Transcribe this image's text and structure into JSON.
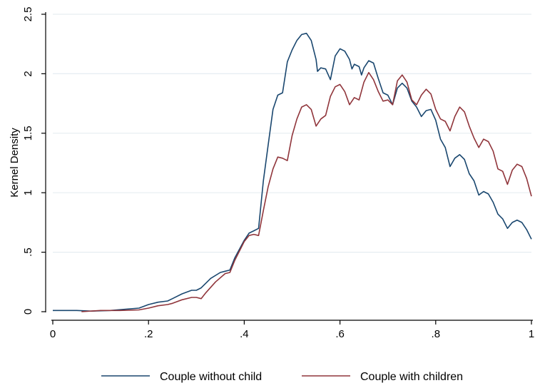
{
  "chart_data": {
    "type": "line",
    "title": "",
    "xlabel": "",
    "ylabel": "Kernel Density",
    "xlim": [
      0,
      1
    ],
    "ylim": [
      0,
      2.5
    ],
    "xticks": [
      0,
      0.2,
      0.4,
      0.6,
      0.8,
      1
    ],
    "xtick_labels": [
      "0",
      ".2",
      ".4",
      ".6",
      ".8",
      "1"
    ],
    "yticks": [
      0,
      0.5,
      1,
      1.5,
      2,
      2.5
    ],
    "ytick_labels": [
      "0",
      ".5",
      "1",
      "1.5",
      "2",
      "2.5"
    ],
    "grid": "horizontal",
    "legend_position": "bottom",
    "series": [
      {
        "name": "Couple without child",
        "color": "#1a476f",
        "points": [
          [
            0.0,
            0.01
          ],
          [
            0.05,
            0.01
          ],
          [
            0.08,
            0.005
          ],
          [
            0.12,
            0.01
          ],
          [
            0.15,
            0.02
          ],
          [
            0.18,
            0.03
          ],
          [
            0.2,
            0.06
          ],
          [
            0.22,
            0.08
          ],
          [
            0.24,
            0.09
          ],
          [
            0.25,
            0.11
          ],
          [
            0.27,
            0.15
          ],
          [
            0.29,
            0.18
          ],
          [
            0.3,
            0.18
          ],
          [
            0.31,
            0.2
          ],
          [
            0.33,
            0.28
          ],
          [
            0.35,
            0.33
          ],
          [
            0.36,
            0.34
          ],
          [
            0.37,
            0.35
          ],
          [
            0.38,
            0.45
          ],
          [
            0.4,
            0.6
          ],
          [
            0.41,
            0.66
          ],
          [
            0.42,
            0.68
          ],
          [
            0.43,
            0.7
          ],
          [
            0.44,
            1.1
          ],
          [
            0.45,
            1.4
          ],
          [
            0.46,
            1.7
          ],
          [
            0.47,
            1.82
          ],
          [
            0.48,
            1.84
          ],
          [
            0.49,
            2.1
          ],
          [
            0.5,
            2.2
          ],
          [
            0.51,
            2.28
          ],
          [
            0.52,
            2.33
          ],
          [
            0.53,
            2.34
          ],
          [
            0.54,
            2.28
          ],
          [
            0.55,
            2.12
          ],
          [
            0.553,
            2.02
          ],
          [
            0.56,
            2.05
          ],
          [
            0.57,
            2.04
          ],
          [
            0.58,
            1.95
          ],
          [
            0.59,
            2.15
          ],
          [
            0.6,
            2.21
          ],
          [
            0.61,
            2.19
          ],
          [
            0.62,
            2.12
          ],
          [
            0.625,
            2.04
          ],
          [
            0.63,
            2.08
          ],
          [
            0.64,
            2.06
          ],
          [
            0.645,
            1.99
          ],
          [
            0.65,
            2.05
          ],
          [
            0.66,
            2.11
          ],
          [
            0.67,
            2.09
          ],
          [
            0.68,
            1.96
          ],
          [
            0.69,
            1.84
          ],
          [
            0.7,
            1.82
          ],
          [
            0.71,
            1.74
          ],
          [
            0.72,
            1.88
          ],
          [
            0.73,
            1.92
          ],
          [
            0.74,
            1.88
          ],
          [
            0.75,
            1.77
          ],
          [
            0.76,
            1.72
          ],
          [
            0.77,
            1.64
          ],
          [
            0.78,
            1.69
          ],
          [
            0.79,
            1.7
          ],
          [
            0.8,
            1.61
          ],
          [
            0.81,
            1.45
          ],
          [
            0.82,
            1.38
          ],
          [
            0.83,
            1.22
          ],
          [
            0.84,
            1.29
          ],
          [
            0.85,
            1.32
          ],
          [
            0.86,
            1.28
          ],
          [
            0.87,
            1.16
          ],
          [
            0.88,
            1.1
          ],
          [
            0.89,
            0.98
          ],
          [
            0.9,
            1.01
          ],
          [
            0.91,
            0.99
          ],
          [
            0.92,
            0.92
          ],
          [
            0.93,
            0.82
          ],
          [
            0.94,
            0.78
          ],
          [
            0.95,
            0.7
          ],
          [
            0.96,
            0.75
          ],
          [
            0.97,
            0.77
          ],
          [
            0.98,
            0.75
          ],
          [
            0.99,
            0.69
          ],
          [
            1.0,
            0.61
          ]
        ]
      },
      {
        "name": "Couple with children",
        "color": "#90353b",
        "points": [
          [
            0.06,
            0.0
          ],
          [
            0.1,
            0.01
          ],
          [
            0.14,
            0.01
          ],
          [
            0.18,
            0.015
          ],
          [
            0.2,
            0.03
          ],
          [
            0.22,
            0.05
          ],
          [
            0.24,
            0.06
          ],
          [
            0.25,
            0.07
          ],
          [
            0.27,
            0.1
          ],
          [
            0.29,
            0.12
          ],
          [
            0.3,
            0.12
          ],
          [
            0.31,
            0.11
          ],
          [
            0.32,
            0.16
          ],
          [
            0.34,
            0.25
          ],
          [
            0.36,
            0.32
          ],
          [
            0.37,
            0.33
          ],
          [
            0.38,
            0.43
          ],
          [
            0.4,
            0.59
          ],
          [
            0.41,
            0.64
          ],
          [
            0.42,
            0.65
          ],
          [
            0.43,
            0.64
          ],
          [
            0.44,
            0.85
          ],
          [
            0.45,
            1.05
          ],
          [
            0.46,
            1.2
          ],
          [
            0.47,
            1.3
          ],
          [
            0.48,
            1.29
          ],
          [
            0.49,
            1.27
          ],
          [
            0.5,
            1.48
          ],
          [
            0.51,
            1.62
          ],
          [
            0.52,
            1.72
          ],
          [
            0.53,
            1.74
          ],
          [
            0.54,
            1.7
          ],
          [
            0.55,
            1.56
          ],
          [
            0.56,
            1.62
          ],
          [
            0.57,
            1.65
          ],
          [
            0.58,
            1.81
          ],
          [
            0.59,
            1.89
          ],
          [
            0.6,
            1.91
          ],
          [
            0.61,
            1.85
          ],
          [
            0.62,
            1.74
          ],
          [
            0.63,
            1.8
          ],
          [
            0.64,
            1.78
          ],
          [
            0.65,
            1.93
          ],
          [
            0.66,
            2.01
          ],
          [
            0.67,
            1.95
          ],
          [
            0.68,
            1.85
          ],
          [
            0.69,
            1.77
          ],
          [
            0.7,
            1.78
          ],
          [
            0.71,
            1.74
          ],
          [
            0.72,
            1.94
          ],
          [
            0.73,
            1.99
          ],
          [
            0.74,
            1.93
          ],
          [
            0.75,
            1.78
          ],
          [
            0.76,
            1.74
          ],
          [
            0.77,
            1.82
          ],
          [
            0.78,
            1.87
          ],
          [
            0.79,
            1.83
          ],
          [
            0.8,
            1.7
          ],
          [
            0.81,
            1.62
          ],
          [
            0.82,
            1.6
          ],
          [
            0.83,
            1.52
          ],
          [
            0.84,
            1.64
          ],
          [
            0.85,
            1.72
          ],
          [
            0.86,
            1.68
          ],
          [
            0.87,
            1.56
          ],
          [
            0.88,
            1.46
          ],
          [
            0.89,
            1.38
          ],
          [
            0.9,
            1.45
          ],
          [
            0.91,
            1.43
          ],
          [
            0.92,
            1.35
          ],
          [
            0.93,
            1.2
          ],
          [
            0.94,
            1.18
          ],
          [
            0.95,
            1.07
          ],
          [
            0.96,
            1.19
          ],
          [
            0.97,
            1.24
          ],
          [
            0.98,
            1.22
          ],
          [
            0.99,
            1.12
          ],
          [
            1.0,
            0.97
          ]
        ]
      }
    ]
  }
}
